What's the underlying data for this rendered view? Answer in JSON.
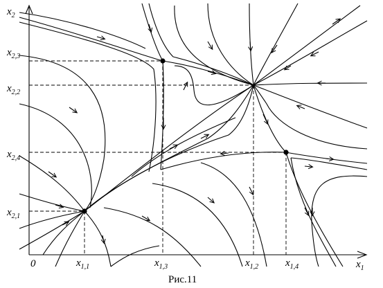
{
  "figure": {
    "caption": "Рис.11",
    "axes": {
      "x_label": "x",
      "x_sub": "1",
      "y_label": "x",
      "y_sub": "2",
      "origin": "0"
    },
    "x_ticks": [
      {
        "name": "x11",
        "base": "x",
        "sub": "1,1"
      },
      {
        "name": "x13",
        "base": "x",
        "sub": "1,3"
      },
      {
        "name": "x12",
        "base": "x",
        "sub": "1,2"
      },
      {
        "name": "x14",
        "base": "x",
        "sub": "1,4"
      }
    ],
    "y_ticks": [
      {
        "name": "x23",
        "base": "x",
        "sub": "2,3"
      },
      {
        "name": "x22",
        "base": "x",
        "sub": "2,2"
      },
      {
        "name": "x24",
        "base": "x",
        "sub": "2,4"
      },
      {
        "name": "x21",
        "base": "x",
        "sub": "2,1"
      }
    ],
    "equilibria": [
      {
        "name": "x11-x21",
        "marker": "filled-dot"
      },
      {
        "name": "x13-x23",
        "marker": "filled-dot"
      },
      {
        "name": "x12-x22",
        "marker": "node"
      },
      {
        "name": "x14-x24",
        "marker": "filled-dot"
      }
    ]
  }
}
